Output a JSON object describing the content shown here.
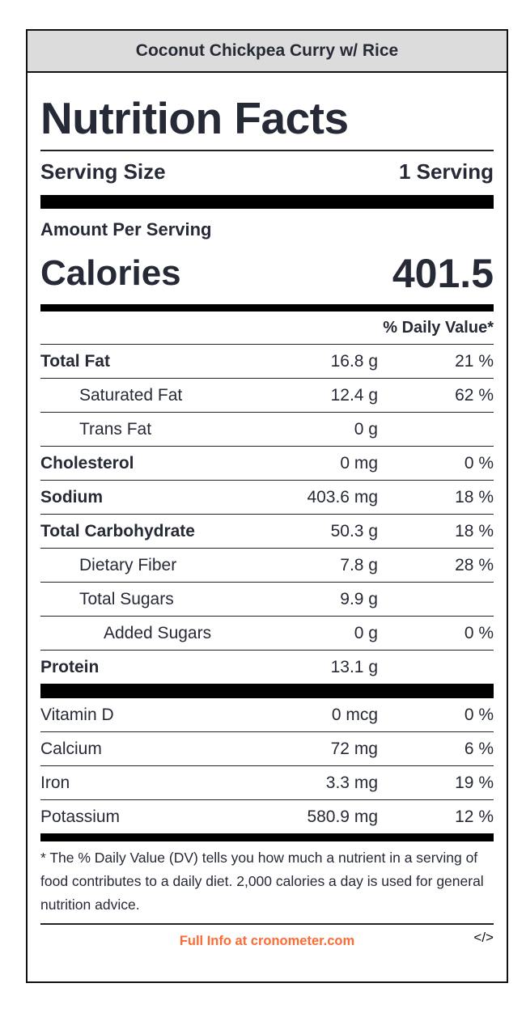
{
  "header": {
    "recipe_name": "Coconut Chickpea Curry w/ Rice"
  },
  "label": {
    "title": "Nutrition Facts",
    "serving_size_label": "Serving Size",
    "serving_size_value": "1 Serving",
    "amount_per_serving": "Amount Per Serving",
    "calories_label": "Calories",
    "calories_value": "401.5",
    "dv_header": "% Daily Value*",
    "nutrients": [
      {
        "name": "Total Fat",
        "amount": "16.8 g",
        "dv": "21 %"
      },
      {
        "name": "Saturated Fat",
        "amount": "12.4 g",
        "dv": "62 %"
      },
      {
        "name": "Trans Fat",
        "amount": "0 g",
        "dv": ""
      },
      {
        "name": "Cholesterol",
        "amount": "0 mg",
        "dv": "0 %"
      },
      {
        "name": "Sodium",
        "amount": "403.6 mg",
        "dv": "18 %"
      },
      {
        "name": "Total Carbohydrate",
        "amount": "50.3 g",
        "dv": "18 %"
      },
      {
        "name": "Dietary Fiber",
        "amount": "7.8 g",
        "dv": "28 %"
      },
      {
        "name": "Total Sugars",
        "amount": "9.9 g",
        "dv": ""
      },
      {
        "name": "Added Sugars",
        "amount": "0 g",
        "dv": "0 %"
      },
      {
        "name": "Protein",
        "amount": "13.1 g",
        "dv": ""
      }
    ],
    "micros": [
      {
        "name": "Vitamin D",
        "amount": "0 mcg",
        "dv": "0 %"
      },
      {
        "name": "Calcium",
        "amount": "72 mg",
        "dv": "6 %"
      },
      {
        "name": "Iron",
        "amount": "3.3 mg",
        "dv": "19 %"
      },
      {
        "name": "Potassium",
        "amount": "580.9 mg",
        "dv": "12 %"
      }
    ],
    "footnote": "* The % Daily Value (DV) tells you how much a nutrient in a serving of food contributes to a daily diet. 2,000 calories a day is used for general nutrition advice."
  },
  "footer": {
    "link_text": "Full Info at cronometer.com",
    "embed_icon": "</>",
    "link_color": "#ff6a33"
  }
}
